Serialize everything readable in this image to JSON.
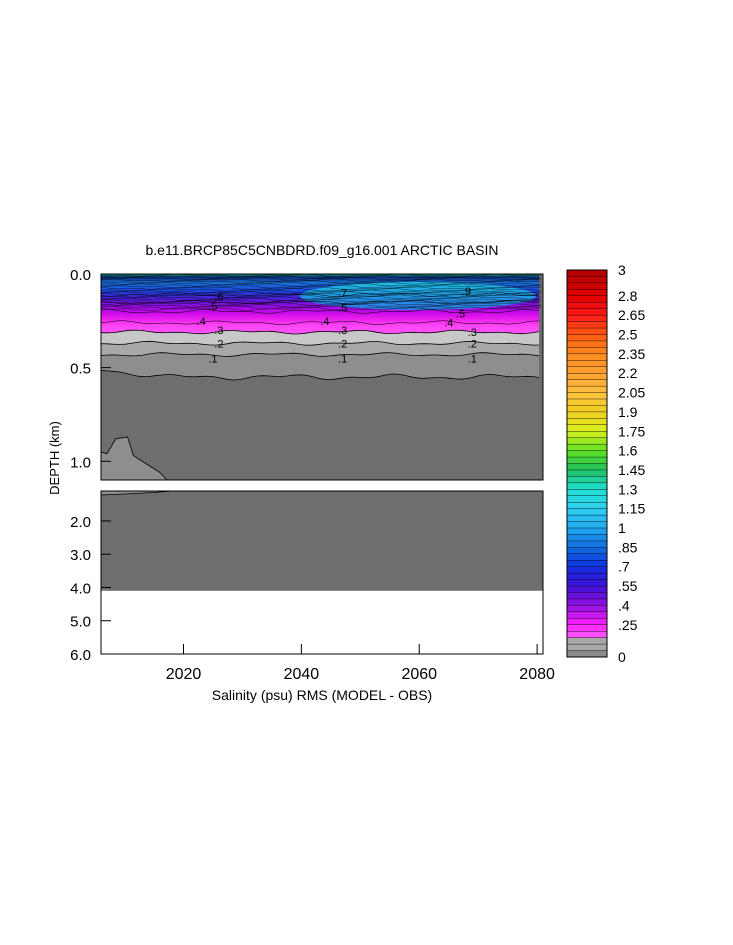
{
  "chart_data": {
    "type": "heatmap",
    "title": "b.e11.BRCP85C5CNBDRD.f09_g16.001 ARCTIC BASIN",
    "xlabel": "Salinity (psu) RMS (MODEL - OBS)",
    "ylabel": "DEPTH (km)",
    "xlim": [
      2006,
      2081
    ],
    "x_ticks": [
      "2020",
      "2040",
      "2060",
      "2080"
    ],
    "x_tick_values": [
      2020,
      2040,
      2060,
      2080
    ],
    "upper_panel": {
      "ylim": [
        0.0,
        1.1
      ],
      "y_ticks": [
        "0.0",
        "0.5",
        "1.0"
      ],
      "y_tick_values": [
        0.0,
        0.5,
        1.0
      ]
    },
    "lower_panel": {
      "ylim": [
        1.1,
        6.0
      ],
      "y_ticks": [
        "2.0",
        "3.0",
        "4.0",
        "5.0",
        "6.0"
      ],
      "y_tick_values": [
        2.0,
        3.0,
        4.0,
        5.0,
        6.0
      ]
    },
    "colorbar": {
      "min": 0,
      "max": 3,
      "labels": [
        "3",
        "2.8",
        "2.65",
        "2.5",
        "2.35",
        "2.2",
        "2.05",
        "1.9",
        "1.75",
        "1.6",
        "1.45",
        "1.3",
        "1.15",
        "1",
        ".85",
        ".7",
        ".55",
        ".4",
        ".25",
        "0"
      ],
      "label_values": [
        3,
        2.8,
        2.65,
        2.5,
        2.35,
        2.2,
        2.05,
        1.9,
        1.75,
        1.6,
        1.45,
        1.3,
        1.15,
        1,
        0.85,
        0.7,
        0.55,
        0.4,
        0.25,
        0
      ]
    },
    "contour_labels": [
      {
        "text": ".6",
        "x": 2026,
        "depth": 0.12
      },
      {
        "text": ".5",
        "x": 2025,
        "depth": 0.17
      },
      {
        "text": ".4",
        "x": 2023,
        "depth": 0.25
      },
      {
        "text": ".3",
        "x": 2026,
        "depth": 0.3
      },
      {
        "text": ".2",
        "x": 2026,
        "depth": 0.37
      },
      {
        "text": ".1",
        "x": 2025,
        "depth": 0.45
      },
      {
        "text": ".7",
        "x": 2047,
        "depth": 0.1
      },
      {
        "text": ".5",
        "x": 2047,
        "depth": 0.18
      },
      {
        "text": ".4",
        "x": 2044,
        "depth": 0.25
      },
      {
        "text": ".3",
        "x": 2047,
        "depth": 0.3
      },
      {
        "text": ".2",
        "x": 2047,
        "depth": 0.37
      },
      {
        "text": ".1",
        "x": 2047,
        "depth": 0.45
      },
      {
        "text": ".9",
        "x": 2068,
        "depth": 0.09
      },
      {
        "text": ".5",
        "x": 2067,
        "depth": 0.21
      },
      {
        "text": ".4",
        "x": 2065,
        "depth": 0.26
      },
      {
        "text": ".3",
        "x": 2069,
        "depth": 0.31
      },
      {
        "text": ".2",
        "x": 2069,
        "depth": 0.37
      },
      {
        "text": ".1",
        "x": 2069,
        "depth": 0.45
      }
    ],
    "deep_value_region": {
      "value": 0.05,
      "depth_from": 0.55,
      "depth_to": 4.1
    },
    "bottom_depth": 4.1
  }
}
